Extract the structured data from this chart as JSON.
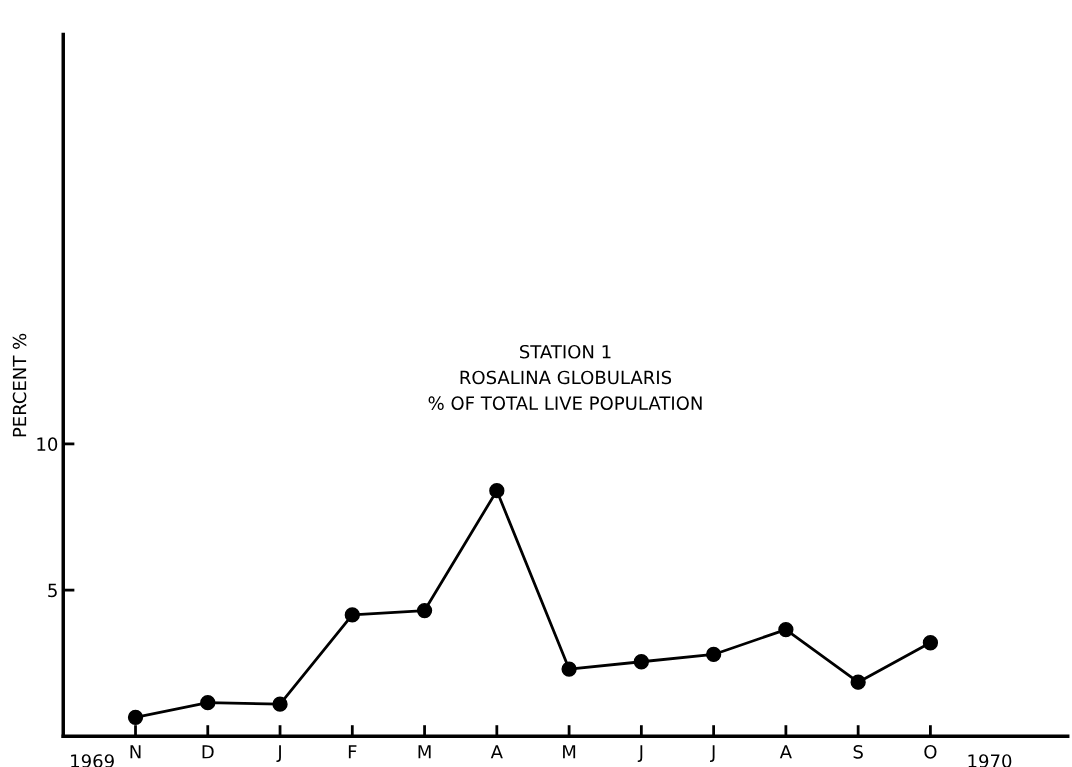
{
  "chart_data": {
    "type": "line",
    "title": "STATION 1\nROSALINA GLOBULARIS\n% OF TOTAL LIVE POPULATION",
    "ylabel": "PERCENT %",
    "categories": [
      "N",
      "D",
      "J",
      "F",
      "M",
      "A",
      "M",
      "J",
      "J",
      "A",
      "S",
      "O"
    ],
    "series": [
      {
        "color": "#000000",
        "values": [
          0.65,
          1.15,
          1.1,
          4.15,
          4.3,
          8.4,
          2.3,
          2.55,
          2.8,
          3.65,
          1.85,
          3.2
        ]
      }
    ],
    "ylim": [
      0,
      24
    ],
    "yticks": [
      5,
      10
    ],
    "grid": false,
    "legend": false,
    "marker": "circle",
    "line_style": "solid",
    "annotations": [
      "1969",
      "1970"
    ]
  }
}
